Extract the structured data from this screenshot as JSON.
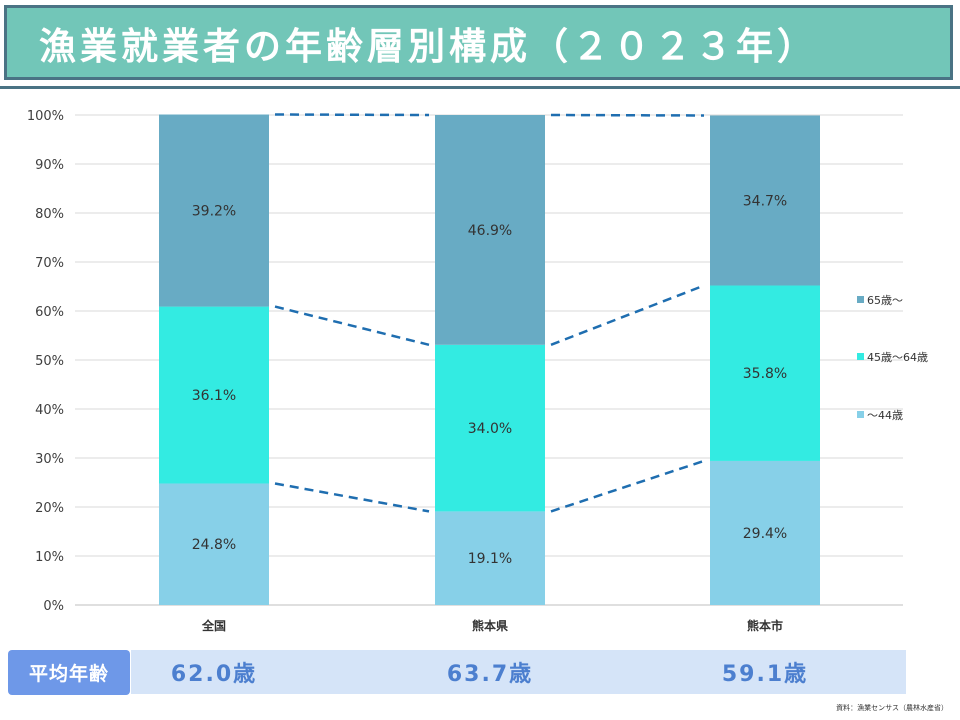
{
  "header": {
    "title": "漁業就業者の年齢層別構成（２０２３年）"
  },
  "chart_data": {
    "type": "bar",
    "stacked": true,
    "categories": [
      "全国",
      "熊本県",
      "熊本市"
    ],
    "series": [
      {
        "name": "～44歳",
        "values": [
          24.8,
          19.1,
          29.4
        ],
        "labels": [
          "24.8%",
          "19.1%",
          "29.4%"
        ],
        "color": "#87d0e8"
      },
      {
        "name": "45歳～64歳",
        "values": [
          36.1,
          34.0,
          35.8
        ],
        "labels": [
          "36.1%",
          "34.0%",
          "35.8%"
        ],
        "color": "#33ebe2"
      },
      {
        "name": "65歳～",
        "values": [
          39.2,
          46.9,
          34.7
        ],
        "labels": [
          "39.2%",
          "46.9%",
          "34.7%"
        ],
        "color": "#68abc4"
      }
    ],
    "ylim": [
      0,
      100
    ],
    "yticks": [
      "0%",
      "10%",
      "20%",
      "30%",
      "40%",
      "50%",
      "60%",
      "70%",
      "80%",
      "90%",
      "100%"
    ],
    "legend": [
      "65歳～",
      "45歳～64歳",
      "～44歳"
    ],
    "legend_position": "right",
    "grid": true,
    "series_lines": "dashed",
    "line_color": "#1f6eb0"
  },
  "average_age": {
    "label": "平均年齢",
    "values": [
      "62.0歳",
      "63.7歳",
      "59.1歳"
    ]
  },
  "source": "資料：漁業センサス（農林水産省）"
}
